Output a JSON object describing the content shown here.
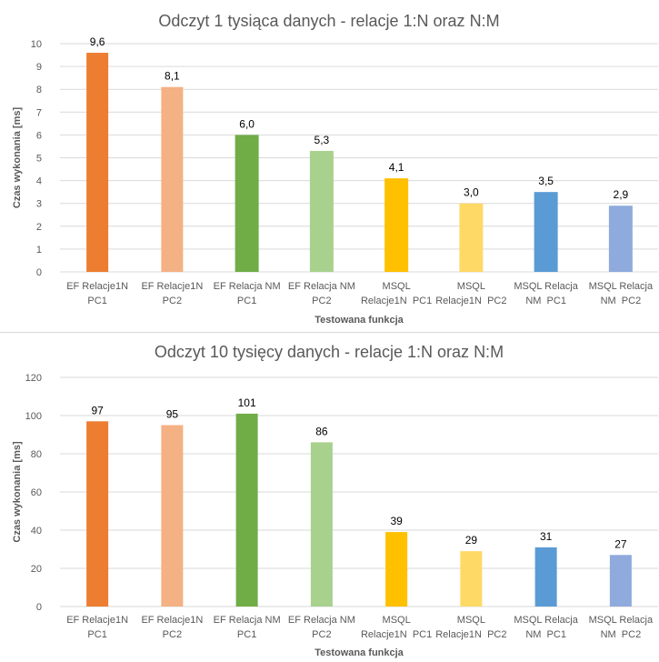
{
  "chart_data": [
    {
      "type": "bar",
      "title": "Odczyt 1 tysiąca danych - relacje 1:N oraz N:M",
      "xlabel": "Testowana funkcja",
      "ylabel": "Czas wykonania [ms]",
      "ylim": [
        0,
        10
      ],
      "yticks": [
        "0",
        "1",
        "2",
        "3",
        "4",
        "5",
        "6",
        "7",
        "8",
        "9",
        "10"
      ],
      "grid": true,
      "categories": [
        [
          "EF Relacje1N",
          "PC1"
        ],
        [
          "EF Relacje1N",
          "PC2"
        ],
        [
          "EF Relacja NM",
          "PC1"
        ],
        [
          "EF Relacja NM",
          "PC2"
        ],
        [
          "MSQL",
          "Relacje1N  PC1"
        ],
        [
          "MSQL",
          "Relacje1N  PC2"
        ],
        [
          "MSQL Relacja",
          "NM  PC1"
        ],
        [
          "MSQL Relacja",
          "NM  PC2"
        ]
      ],
      "values": [
        9.6,
        8.1,
        6.0,
        5.3,
        4.1,
        3.0,
        3.5,
        2.9
      ],
      "data_labels": [
        "9,6",
        "8,1",
        "6,0",
        "5,3",
        "4,1",
        "3,0",
        "3,5",
        "2,9"
      ],
      "colors": [
        "#ED7D31",
        "#F4B183",
        "#70AD47",
        "#A9D18E",
        "#FFC000",
        "#FFD966",
        "#5B9BD5",
        "#8FAADC"
      ]
    },
    {
      "type": "bar",
      "title": "Odczyt 10 tysięcy danych - relacje 1:N oraz N:M",
      "xlabel": "Testowana funkcja",
      "ylabel": "Czas wykonania [ms]",
      "ylim": [
        0,
        120
      ],
      "yticks": [
        "0",
        "20",
        "40",
        "60",
        "80",
        "100",
        "120"
      ],
      "grid": true,
      "categories": [
        [
          "EF Relacje1N",
          "PC1"
        ],
        [
          "EF Relacje1N",
          "PC2"
        ],
        [
          "EF Relacja NM",
          "PC1"
        ],
        [
          "EF Relacja NM",
          "PC2"
        ],
        [
          "MSQL",
          "Relacje1N  PC1"
        ],
        [
          "MSQL",
          "Relacje1N  PC2"
        ],
        [
          "MSQL Relacja",
          "NM  PC1"
        ],
        [
          "MSQL Relacja",
          "NM  PC2"
        ]
      ],
      "values": [
        97,
        95,
        101,
        86,
        39,
        29,
        31,
        27
      ],
      "data_labels": [
        "97",
        "95",
        "101",
        "86",
        "39",
        "29",
        "31",
        "27"
      ],
      "colors": [
        "#ED7D31",
        "#F4B183",
        "#70AD47",
        "#A9D18E",
        "#FFC000",
        "#FFD966",
        "#5B9BD5",
        "#8FAADC"
      ]
    }
  ]
}
